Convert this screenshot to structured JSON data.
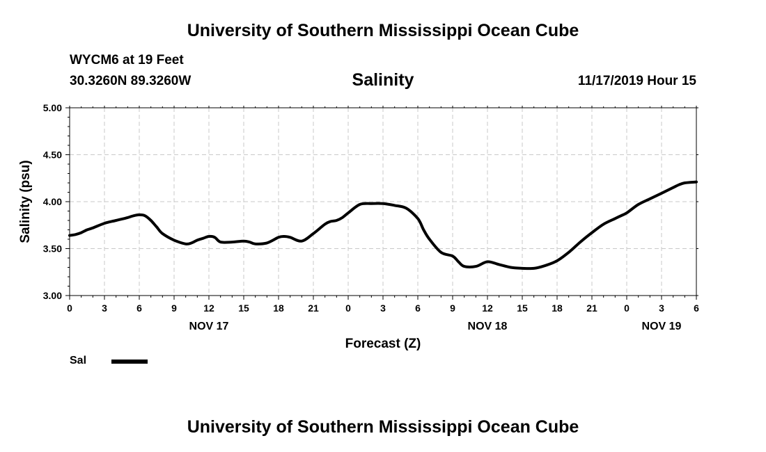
{
  "header": {
    "title": "University of Southern Mississippi Ocean Cube",
    "station": "WYCM6 at 19 Feet",
    "coordinates": "30.3260N 89.3260W",
    "timestamp": "11/17/2019 Hour 15"
  },
  "footer": {
    "title": "University of Southern Mississippi Ocean Cube"
  },
  "legend": {
    "label": "Sal",
    "color": "#000000"
  },
  "chart_data": {
    "type": "line",
    "title": "Salinity",
    "xlabel": "Forecast (Z)",
    "ylabel": "Salinity (psu)",
    "xlim": [
      0,
      54
    ],
    "ylim": [
      3.0,
      5.0
    ],
    "grid": true,
    "x_ticks": [
      0,
      3,
      6,
      9,
      12,
      15,
      18,
      21,
      24,
      27,
      30,
      33,
      36,
      39,
      42,
      45,
      48,
      51,
      54
    ],
    "x_tick_labels": [
      "0",
      "3",
      "6",
      "9",
      "12",
      "15",
      "18",
      "21",
      "0",
      "3",
      "6",
      "9",
      "12",
      "15",
      "18",
      "21",
      "0",
      "3",
      "6"
    ],
    "y_ticks": [
      3.0,
      3.5,
      4.0,
      4.5,
      5.0
    ],
    "y_tick_labels": [
      "3.00",
      "3.50",
      "4.00",
      "4.50",
      "5.00"
    ],
    "date_labels": [
      {
        "x": 12,
        "label": "NOV 17"
      },
      {
        "x": 36,
        "label": "NOV 18"
      },
      {
        "x": 51,
        "label": "NOV 19"
      }
    ],
    "series": [
      {
        "name": "Sal",
        "x": [
          0,
          0.5,
          1,
          1.5,
          2,
          3,
          4,
          5,
          5.5,
          6,
          6.5,
          7,
          7.5,
          8,
          9,
          10,
          10.5,
          11,
          11.5,
          12,
          12.5,
          13,
          14,
          15,
          15.5,
          16,
          17,
          18,
          18.5,
          19,
          20,
          21,
          22,
          22.5,
          23,
          23.5,
          24,
          25,
          26,
          27,
          28,
          29,
          30,
          30.5,
          31,
          32,
          33,
          33.5,
          34,
          35,
          36,
          37,
          38,
          39,
          40,
          41,
          42,
          43,
          44,
          45,
          46,
          47,
          47.5,
          48,
          49,
          50,
          51,
          52,
          52.5,
          53,
          54
        ],
        "values": [
          3.64,
          3.65,
          3.67,
          3.7,
          3.72,
          3.77,
          3.8,
          3.83,
          3.85,
          3.86,
          3.85,
          3.8,
          3.73,
          3.66,
          3.59,
          3.55,
          3.56,
          3.59,
          3.61,
          3.63,
          3.62,
          3.57,
          3.57,
          3.58,
          3.57,
          3.55,
          3.56,
          3.62,
          3.63,
          3.62,
          3.58,
          3.66,
          3.76,
          3.79,
          3.8,
          3.83,
          3.88,
          3.97,
          3.98,
          3.98,
          3.96,
          3.93,
          3.82,
          3.7,
          3.6,
          3.46,
          3.42,
          3.36,
          3.31,
          3.31,
          3.36,
          3.33,
          3.3,
          3.29,
          3.29,
          3.32,
          3.37,
          3.46,
          3.57,
          3.67,
          3.76,
          3.82,
          3.85,
          3.88,
          3.97,
          4.03,
          4.09,
          4.15,
          4.18,
          4.2,
          4.21
        ]
      }
    ]
  }
}
